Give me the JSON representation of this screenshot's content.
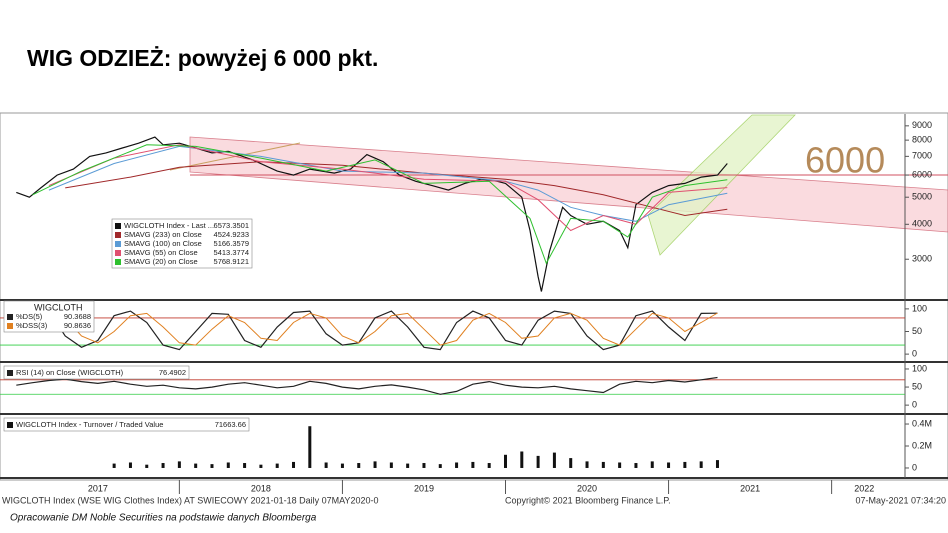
{
  "title": "WIG ODZIEŻ: powyżej 6 000 pkt.",
  "annotation": "6000",
  "footer": {
    "left": "WIGCLOTH Index (WSE WIG Clothes Index) AT SWIECOWY 2021-01-18  Daily 07MAY2020-0",
    "center": "Copyright© 2021 Bloomberg Finance L.P.",
    "right": "07-May-2021 07:34:20"
  },
  "caption": "Opracowanie DM Noble Securities na podstawie danych Bloomberga",
  "chart_data": [
    {
      "type": "line",
      "log_scale": true,
      "xlim": [
        2016.9,
        2022.45
      ],
      "ylim": [
        2180,
        9600
      ],
      "yticks": [
        3000,
        4000,
        5000,
        6000,
        7000,
        8000,
        9000
      ],
      "x": [
        2017.0,
        2017.08,
        2017.15,
        2017.25,
        2017.35,
        2017.45,
        2017.55,
        2017.65,
        2017.75,
        2017.85,
        2017.9,
        2018.0,
        2018.1,
        2018.2,
        2018.3,
        2018.45,
        2018.6,
        2018.7,
        2018.8,
        2018.95,
        2019.05,
        2019.15,
        2019.25,
        2019.35,
        2019.45,
        2019.55,
        2019.65,
        2019.75,
        2019.85,
        2019.95,
        2020.0,
        2020.1,
        2020.15,
        2020.2,
        2020.22,
        2020.27,
        2020.35,
        2020.4,
        2020.5,
        2020.6,
        2020.7,
        2020.75,
        2020.8,
        2020.9,
        2021.0,
        2021.1,
        2021.2,
        2021.3,
        2021.36
      ],
      "series": [
        {
          "name": "WIGCLOTH Index - Last ...",
          "last": 6573.3501,
          "color": "#111111",
          "values": [
            5200,
            5000,
            5400,
            6000,
            6300,
            7000,
            7200,
            7500,
            7800,
            8200,
            7700,
            7800,
            7500,
            7200,
            7300,
            6800,
            6200,
            6000,
            6300,
            6100,
            6300,
            7100,
            6700,
            6000,
            5700,
            5500,
            5300,
            5600,
            5800,
            5700,
            5600,
            5000,
            3800,
            2600,
            2300,
            3200,
            4600,
            4300,
            4000,
            4100,
            3800,
            3300,
            4700,
            5200,
            5500,
            5600,
            5900,
            6000,
            6600
          ]
        },
        {
          "name": "SMAVG (233)  on Close",
          "last": 4524.9233,
          "color": "#a0282a",
          "x": [
            2017.3,
            2017.7,
            2018.0,
            2018.5,
            2019.0,
            2019.5,
            2020.0,
            2020.3,
            2020.6,
            2020.9,
            2021.1,
            2021.36
          ],
          "values": [
            5400,
            5900,
            6400,
            6700,
            6500,
            6100,
            5800,
            5500,
            5100,
            4600,
            4300,
            4525
          ]
        },
        {
          "name": "SMAVG (100)  on Close",
          "last": 5166.3579,
          "color": "#5b9bd5",
          "x": [
            2017.2,
            2017.6,
            2018.0,
            2018.5,
            2019.0,
            2019.5,
            2020.0,
            2020.2,
            2020.4,
            2020.6,
            2020.8,
            2021.0,
            2021.36
          ],
          "values": [
            5300,
            6600,
            7600,
            7000,
            6200,
            6100,
            5700,
            5300,
            4600,
            4300,
            4100,
            4700,
            5166
          ]
        },
        {
          "name": "SMAVG (55)   on Close",
          "last": 5413.3774,
          "color": "#e05070",
          "x": [
            2017.2,
            2017.6,
            2018.0,
            2018.5,
            2019.0,
            2019.5,
            2020.0,
            2020.2,
            2020.4,
            2020.6,
            2020.8,
            2021.0,
            2021.36
          ],
          "values": [
            5500,
            6900,
            7700,
            6700,
            6300,
            5800,
            5700,
            4900,
            3800,
            4300,
            4000,
            5200,
            5413
          ]
        },
        {
          "name": "SMAVG (20)   on Close",
          "last": 5768.9121,
          "color": "#2ec02e",
          "x": [
            2017.1,
            2017.4,
            2017.8,
            2018.1,
            2018.5,
            2018.9,
            2019.2,
            2019.5,
            2019.9,
            2020.15,
            2020.25,
            2020.4,
            2020.6,
            2020.75,
            2020.9,
            2021.1,
            2021.36
          ],
          "values": [
            5100,
            6200,
            7700,
            7600,
            6900,
            6200,
            6800,
            5600,
            5700,
            4200,
            2900,
            4200,
            4100,
            3600,
            5000,
            5500,
            5769
          ]
        }
      ]
    },
    {
      "type": "line",
      "legend_title": "WIGCLOTH",
      "xlim": [
        2016.9,
        2022.45
      ],
      "ylim": [
        -13,
        113
      ],
      "yticks": [
        0,
        50,
        100
      ],
      "levels": [
        {
          "value": 80,
          "color": "#c0392b"
        },
        {
          "value": 20,
          "color": "#2ecc40"
        }
      ],
      "x": [
        2017.0,
        2017.1,
        2017.2,
        2017.3,
        2017.4,
        2017.5,
        2017.6,
        2017.7,
        2017.8,
        2017.9,
        2018.0,
        2018.1,
        2018.2,
        2018.3,
        2018.4,
        2018.5,
        2018.6,
        2018.7,
        2018.8,
        2018.9,
        2019.0,
        2019.1,
        2019.2,
        2019.3,
        2019.4,
        2019.5,
        2019.6,
        2019.7,
        2019.8,
        2019.9,
        2020.0,
        2020.1,
        2020.2,
        2020.3,
        2020.4,
        2020.5,
        2020.6,
        2020.7,
        2020.8,
        2020.9,
        2021.0,
        2021.1,
        2021.2,
        2021.3
      ],
      "series": [
        {
          "name": "%DS(5)",
          "last": 90.3688,
          "color": "#222222",
          "values": [
            60,
            90,
            95,
            40,
            15,
            30,
            85,
            95,
            70,
            20,
            10,
            50,
            90,
            88,
            30,
            15,
            60,
            92,
            95,
            45,
            20,
            25,
            80,
            95,
            60,
            15,
            10,
            70,
            95,
            80,
            30,
            20,
            75,
            95,
            90,
            40,
            10,
            20,
            85,
            95,
            60,
            30,
            90,
            90.37
          ]
        },
        {
          "name": "%DSS(3)",
          "last": 90.8636,
          "color": "#e08020",
          "values": [
            50,
            70,
            90,
            80,
            40,
            25,
            50,
            85,
            90,
            60,
            25,
            20,
            55,
            85,
            70,
            35,
            30,
            70,
            90,
            80,
            40,
            25,
            50,
            85,
            90,
            55,
            20,
            30,
            75,
            90,
            70,
            35,
            40,
            80,
            90,
            75,
            35,
            20,
            55,
            90,
            80,
            50,
            70,
            90.86
          ]
        }
      ]
    },
    {
      "type": "line",
      "xlim": [
        2016.9,
        2022.45
      ],
      "ylim": [
        -19,
        111
      ],
      "yticks": [
        0,
        50,
        100
      ],
      "levels": [
        {
          "value": 70,
          "color": "#c0392b"
        },
        {
          "value": 30,
          "color": "#2ecc40"
        }
      ],
      "x": [
        2017.0,
        2017.1,
        2017.2,
        2017.3,
        2017.4,
        2017.5,
        2017.6,
        2017.7,
        2017.8,
        2017.9,
        2018.0,
        2018.1,
        2018.2,
        2018.3,
        2018.4,
        2018.5,
        2018.6,
        2018.7,
        2018.8,
        2018.9,
        2019.0,
        2019.1,
        2019.2,
        2019.3,
        2019.4,
        2019.5,
        2019.6,
        2019.7,
        2019.8,
        2019.9,
        2020.0,
        2020.1,
        2020.2,
        2020.3,
        2020.4,
        2020.5,
        2020.6,
        2020.7,
        2020.8,
        2020.9,
        2021.0,
        2021.1,
        2021.2,
        2021.3
      ],
      "series": [
        {
          "name": "RSI (14)  on Close (WIGCLOTH)",
          "last": 76.4902,
          "color": "#222222",
          "values": [
            55,
            62,
            68,
            72,
            65,
            60,
            66,
            58,
            52,
            55,
            48,
            45,
            50,
            58,
            62,
            55,
            48,
            52,
            66,
            60,
            50,
            45,
            52,
            56,
            50,
            42,
            30,
            38,
            58,
            65,
            55,
            50,
            48,
            52,
            45,
            40,
            35,
            58,
            66,
            62,
            68,
            64,
            70,
            76.49
          ]
        }
      ]
    },
    {
      "type": "bar",
      "xlim": [
        2016.9,
        2022.45
      ],
      "ylim": [
        -73000,
        473000
      ],
      "yticks": [
        0,
        {
          "value": 200000,
          "label": "0.2M"
        },
        {
          "value": 400000,
          "label": "0.4M"
        }
      ],
      "xticks": [
        {
          "value": 2017.5,
          "label": "2017"
        },
        {
          "value": 2018.5,
          "label": "2018"
        },
        {
          "value": 2019.5,
          "label": "2019"
        },
        {
          "value": 2020.5,
          "label": "2020"
        },
        {
          "value": 2021.5,
          "label": "2021"
        },
        {
          "value": 2022.2,
          "label": "2022"
        }
      ],
      "x": [
        2017.6,
        2017.7,
        2017.8,
        2017.9,
        2018.0,
        2018.1,
        2018.2,
        2018.3,
        2018.4,
        2018.5,
        2018.6,
        2018.7,
        2018.8,
        2018.9,
        2019.0,
        2019.1,
        2019.2,
        2019.3,
        2019.4,
        2019.5,
        2019.6,
        2019.7,
        2019.8,
        2019.9,
        2020.0,
        2020.1,
        2020.2,
        2020.3,
        2020.4,
        2020.5,
        2020.6,
        2020.7,
        2020.8,
        2020.9,
        2021.0,
        2021.1,
        2021.2,
        2021.3
      ],
      "series": [
        {
          "name": "WIGCLOTH Index - Turnover / Traded Value",
          "last": 71663.66,
          "color": "#111111",
          "values": [
            40000,
            50000,
            30000,
            45000,
            60000,
            40000,
            35000,
            50000,
            45000,
            30000,
            40000,
            55000,
            380000,
            50000,
            40000,
            45000,
            60000,
            50000,
            40000,
            45000,
            35000,
            50000,
            55000,
            45000,
            120000,
            150000,
            110000,
            140000,
            90000,
            60000,
            55000,
            50000,
            45000,
            60000,
            50000,
            55000,
            60000,
            71663.66
          ]
        }
      ]
    }
  ]
}
